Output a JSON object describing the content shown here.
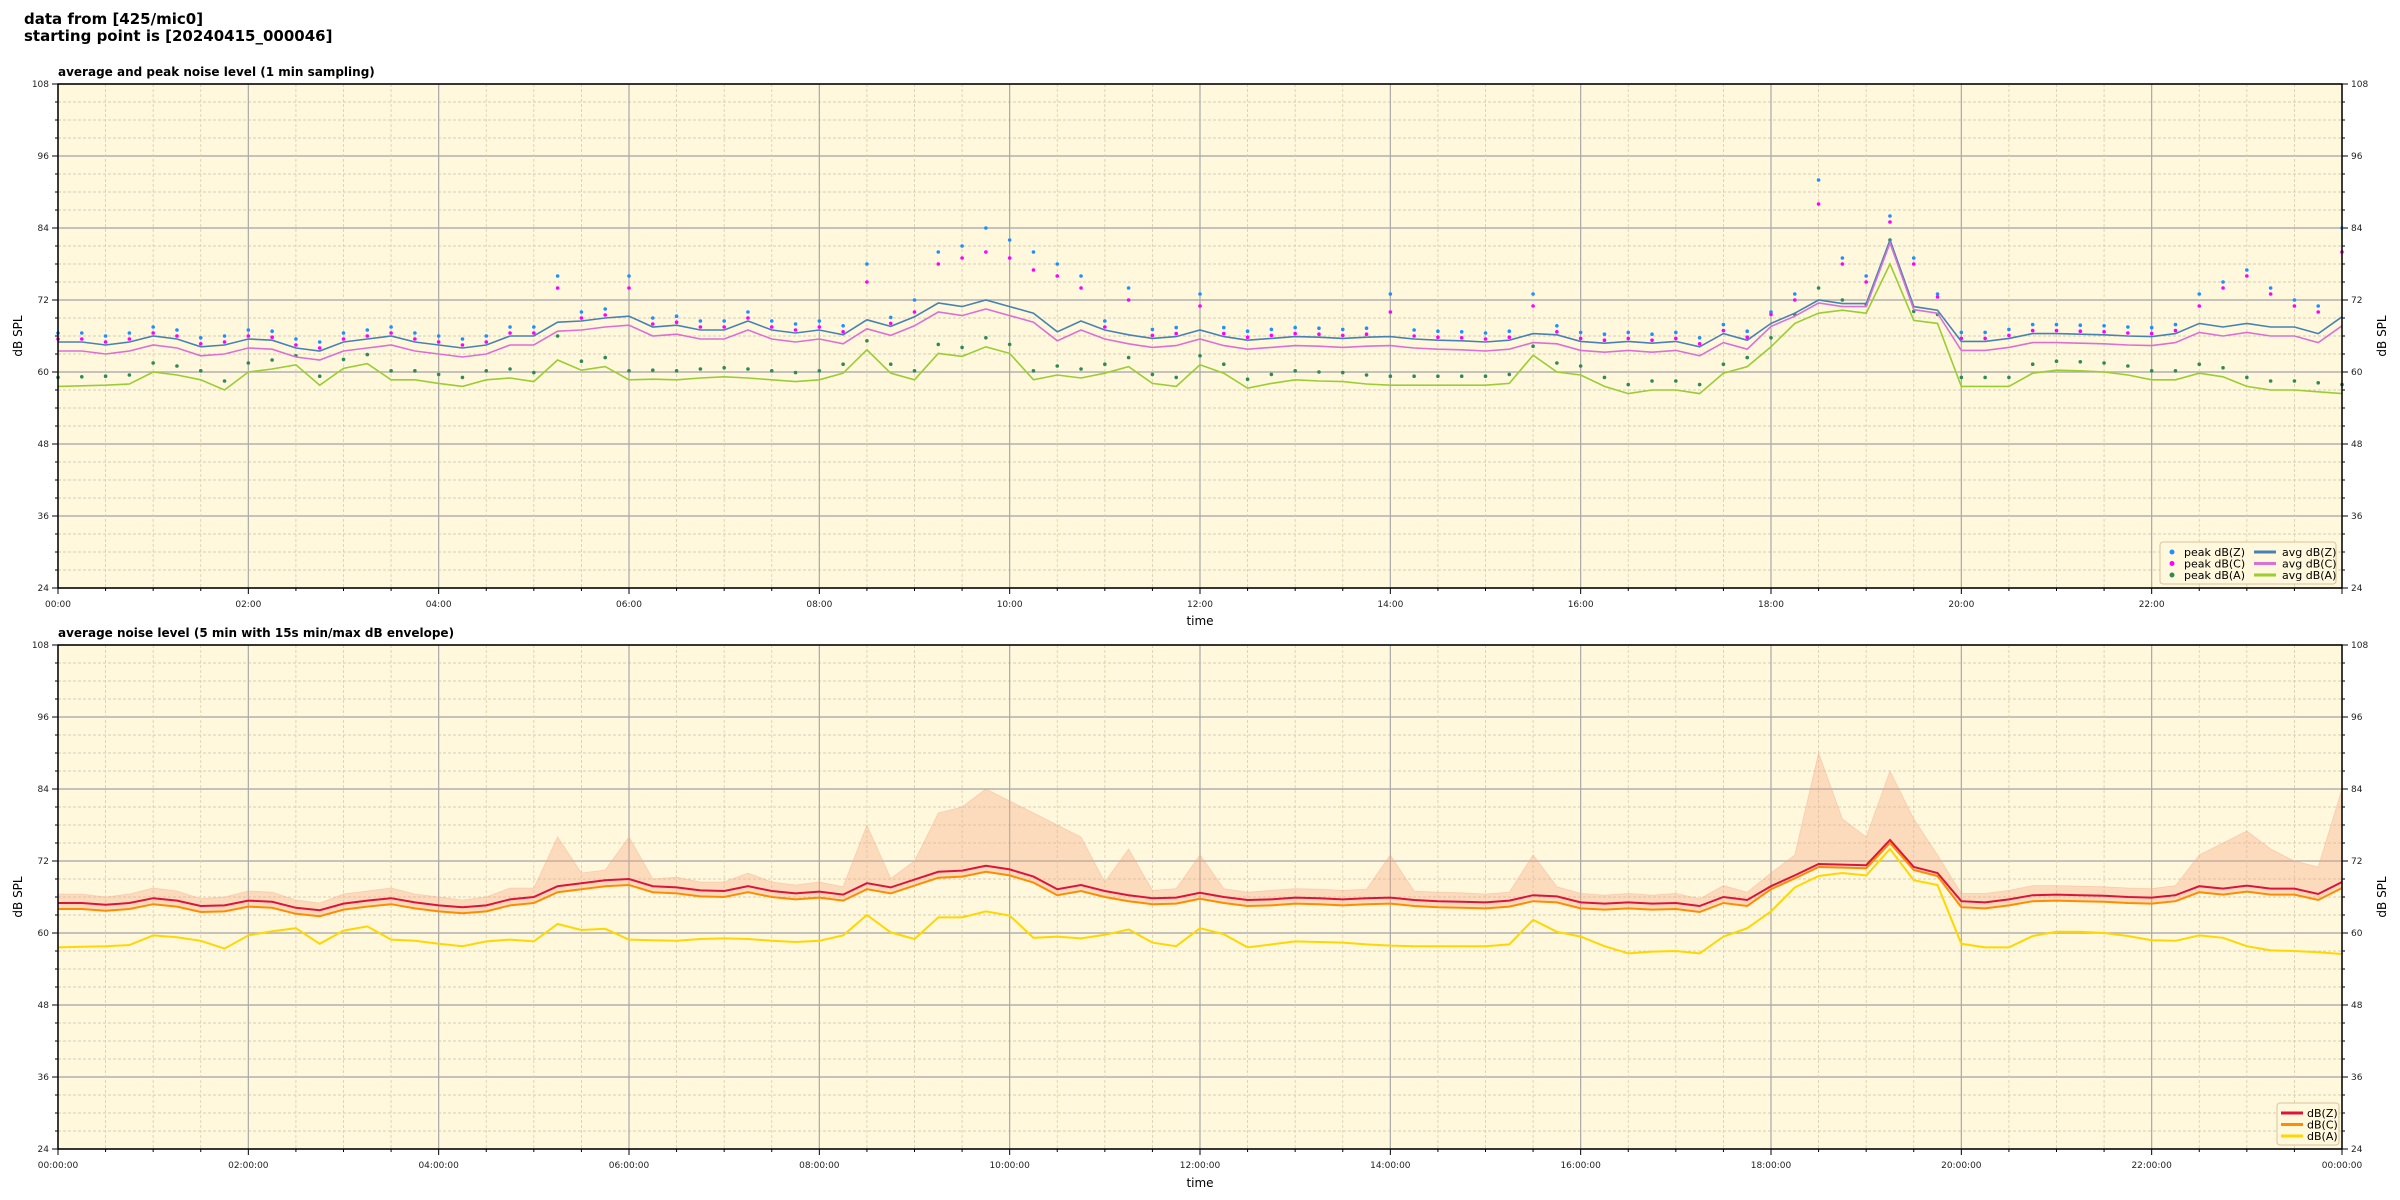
{
  "header": {
    "line1": "data from [425/mic0]",
    "line2": "starting point is [20240415_000046]"
  },
  "background_color": "#fff8dc",
  "chart_data": [
    {
      "type": "line+scatter",
      "title": "average and peak noise level (1 min sampling)",
      "xlabel": "time",
      "ylabel": "dB SPL",
      "ylim": [
        24,
        108
      ],
      "yticks": [
        24,
        36,
        48,
        60,
        72,
        84,
        96,
        108
      ],
      "xlim_hours": [
        0,
        24
      ],
      "xtick_labels": [
        "00:00",
        "02:00",
        "04:00",
        "06:00",
        "08:00",
        "10:00",
        "12:00",
        "14:00",
        "16:00",
        "18:00",
        "20:00",
        "22:00"
      ],
      "grid": true,
      "legend_placement": "lower-right",
      "x_step_hours": 0.25,
      "series": [
        {
          "name": "peak dB(Z)",
          "kind": "scatter",
          "color": "#1e90ff",
          "values": [
            66.5,
            66.5,
            66,
            66.5,
            67.5,
            67,
            65.7,
            66,
            67,
            66.8,
            65.5,
            65,
            66.5,
            67,
            67.5,
            66.5,
            66,
            65.5,
            66,
            67.5,
            67.5,
            76,
            70,
            70.5,
            76,
            69,
            69.3,
            68.5,
            68.5,
            70,
            68.5,
            68,
            68.5,
            67.7,
            78,
            69.1,
            72,
            80,
            81,
            84,
            82,
            80,
            78,
            76,
            68.5,
            74,
            67.1,
            67.4,
            73,
            67.4,
            66.8,
            67.1,
            67.4,
            67.3,
            67.1,
            67.3,
            73,
            67,
            66.8,
            66.7,
            66.5,
            66.8,
            73,
            67.7,
            66.6,
            66.3,
            66.6,
            66.3,
            66.6,
            65.7,
            67.9,
            66.8,
            70,
            73,
            92,
            79,
            76,
            86,
            79,
            73,
            66.6,
            66.6,
            67.1,
            67.9,
            67.9,
            67.8,
            67.7,
            67.5,
            67.4,
            67.9,
            73,
            75,
            77,
            74,
            72,
            71,
            84
          ]
        },
        {
          "name": "peak dB(C)",
          "kind": "scatter",
          "color": "#ff00ff",
          "values": [
            65.5,
            65.5,
            65,
            65.5,
            66.5,
            66,
            64.7,
            65,
            66,
            65.8,
            64.5,
            64,
            65.5,
            66,
            66.5,
            65.5,
            65,
            64.5,
            65,
            66.5,
            66.5,
            74,
            69,
            69.5,
            74,
            68,
            68.3,
            67.5,
            67.5,
            69,
            67.5,
            67,
            67.5,
            66.7,
            75,
            68.1,
            70,
            78,
            79,
            80,
            79,
            77,
            76,
            74,
            67.5,
            72,
            66.1,
            66.4,
            71,
            66.4,
            65.8,
            66.1,
            66.4,
            66.3,
            66.1,
            66.3,
            70,
            66,
            65.8,
            65.7,
            65.5,
            65.8,
            71,
            66.7,
            65.6,
            65.3,
            65.6,
            65.3,
            65.6,
            64.7,
            66.9,
            65.8,
            69.6,
            72,
            88,
            78,
            75,
            85,
            78,
            72.5,
            65.6,
            65.6,
            66.1,
            66.9,
            66.9,
            66.8,
            66.7,
            66.5,
            66.4,
            66.9,
            71,
            74,
            76,
            73,
            71,
            70,
            80
          ]
        },
        {
          "name": "peak dB(A)",
          "kind": "scatter",
          "color": "#2e8b57",
          "values": [
            59.1,
            59.2,
            59.3,
            59.5,
            61.5,
            61,
            60.2,
            58.5,
            61.5,
            62,
            62.7,
            59.3,
            62.1,
            62.9,
            60.2,
            60.2,
            59.6,
            59.1,
            60.2,
            60.5,
            59.9,
            66,
            61.8,
            62.4,
            60.2,
            60.3,
            60.2,
            60.5,
            60.7,
            60.5,
            60.2,
            59.9,
            60.2,
            61.3,
            65.2,
            61.3,
            60.2,
            64.6,
            64.1,
            65.7,
            64.6,
            60.2,
            61,
            60.5,
            61.3,
            62.4,
            59.6,
            59.1,
            62.7,
            61.3,
            58.8,
            59.6,
            60.2,
            60,
            59.9,
            59.5,
            59.3,
            59.3,
            59.3,
            59.3,
            59.3,
            59.6,
            64.3,
            61.5,
            61,
            59.1,
            57.9,
            58.5,
            58.5,
            57.9,
            61.3,
            62.4,
            65.7,
            69.6,
            74,
            72,
            71.3,
            82,
            70.1,
            69.6,
            59.1,
            59.1,
            59.1,
            61.3,
            61.8,
            61.7,
            61.5,
            61,
            60.2,
            60.2,
            61.3,
            60.7,
            59.1,
            58.5,
            58.5,
            58.2,
            57.9
          ]
        },
        {
          "name": "avg dB(Z)",
          "kind": "line",
          "color": "#4682b4",
          "values": [
            65,
            65,
            64.5,
            65,
            66,
            65.5,
            64.2,
            64.5,
            65.5,
            65.3,
            64,
            63.5,
            65,
            65.5,
            66,
            65,
            64.5,
            64,
            64.5,
            66,
            66,
            68.3,
            68.5,
            69,
            69.3,
            67.5,
            67.8,
            67,
            67,
            68.5,
            67,
            66.5,
            67,
            66.2,
            68.7,
            67.6,
            69.2,
            71.5,
            70.9,
            72,
            70.9,
            69.8,
            66.7,
            68.5,
            67,
            66.2,
            65.6,
            65.9,
            67,
            65.9,
            65.3,
            65.6,
            65.9,
            65.8,
            65.6,
            65.8,
            65.9,
            65.5,
            65.3,
            65.2,
            65,
            65.3,
            66.4,
            66.2,
            65.1,
            64.8,
            65.1,
            64.8,
            65.1,
            64.2,
            66.4,
            65.3,
            68.1,
            69.8,
            72,
            71.4,
            71.4,
            82,
            70.9,
            70.3,
            65.1,
            65.1,
            65.6,
            66.4,
            66.4,
            66.3,
            66.2,
            66,
            65.9,
            66.4,
            68.1,
            67.5,
            68.1,
            67.5,
            67.5,
            66.4,
            69.2
          ]
        },
        {
          "name": "avg dB(C)",
          "kind": "line",
          "color": "#da70d6",
          "values": [
            63.5,
            63.5,
            63,
            63.5,
            64.5,
            64,
            62.7,
            63,
            64,
            63.8,
            62.5,
            62,
            63.5,
            64,
            64.5,
            63.5,
            63,
            62.5,
            63,
            64.5,
            64.5,
            66.8,
            67,
            67.5,
            67.8,
            66,
            66.3,
            65.5,
            65.5,
            67,
            65.5,
            65,
            65.5,
            64.7,
            67.2,
            66.1,
            67.7,
            70,
            69.4,
            70.5,
            69.4,
            68.3,
            65.2,
            67,
            65.5,
            64.7,
            64.1,
            64.4,
            65.5,
            64.4,
            63.8,
            64.1,
            64.4,
            64.3,
            64.1,
            64.3,
            64.4,
            64,
            63.8,
            63.7,
            63.5,
            63.8,
            64.9,
            64.7,
            63.6,
            63.3,
            63.6,
            63.3,
            63.6,
            62.7,
            64.9,
            63.8,
            67.6,
            69.3,
            71.5,
            70.9,
            70.9,
            81.5,
            70.4,
            69.8,
            63.6,
            63.6,
            64.1,
            64.9,
            64.9,
            64.8,
            64.7,
            64.5,
            64.4,
            64.9,
            66.6,
            66,
            66.6,
            66,
            66,
            64.9,
            67.7
          ]
        },
        {
          "name": "avg dB(A)",
          "kind": "line",
          "color": "#9acd32",
          "values": [
            57.6,
            57.7,
            57.8,
            58,
            60,
            59.5,
            58.7,
            57,
            60,
            60.5,
            61.2,
            57.8,
            60.6,
            61.4,
            58.7,
            58.7,
            58.1,
            57.6,
            58.7,
            59,
            58.4,
            62,
            60.3,
            60.9,
            58.7,
            58.8,
            58.7,
            59,
            59.2,
            59,
            58.7,
            58.4,
            58.7,
            59.8,
            63.7,
            59.8,
            58.7,
            63.1,
            62.6,
            64.2,
            63.1,
            58.7,
            59.5,
            59,
            59.8,
            60.9,
            58.1,
            57.6,
            61.2,
            59.8,
            57.3,
            58.1,
            58.7,
            58.5,
            58.4,
            58,
            57.8,
            57.8,
            57.8,
            57.8,
            57.8,
            58.1,
            62.8,
            60,
            59.5,
            57.6,
            56.4,
            57,
            57,
            56.4,
            59.8,
            60.9,
            64.2,
            68.1,
            69.8,
            70.3,
            69.8,
            78,
            68.6,
            68.1,
            57.6,
            57.6,
            57.6,
            59.8,
            60.3,
            60.2,
            60,
            59.5,
            58.7,
            58.7,
            59.8,
            59.2,
            57.6,
            57,
            57,
            56.7,
            56.4
          ]
        }
      ]
    },
    {
      "type": "line+area",
      "title": "average noise level (5 min with 15s min/max dB envelope)",
      "xlabel": "time",
      "ylabel": "dB SPL",
      "ylim": [
        24,
        108
      ],
      "yticks": [
        24,
        36,
        48,
        60,
        72,
        84,
        96,
        108
      ],
      "xlim_hours": [
        0,
        24
      ],
      "xtick_labels": [
        "00:00:00",
        "02:00:00",
        "04:00:00",
        "06:00:00",
        "08:00:00",
        "10:00:00",
        "12:00:00",
        "14:00:00",
        "16:00:00",
        "18:00:00",
        "20:00:00",
        "22:00:00",
        "00:00:00"
      ],
      "grid": true,
      "legend_placement": "lower-right",
      "x_step_hours": 0.25,
      "envelope": {
        "color": "#f4a582",
        "max_values": [
          66.5,
          66.5,
          66,
          66.5,
          67.5,
          67,
          65.7,
          66,
          67,
          66.8,
          65.5,
          65,
          66.5,
          67,
          67.5,
          66.5,
          66,
          65.5,
          66,
          67.5,
          67.5,
          76,
          70,
          70.5,
          76,
          69,
          69.3,
          68.5,
          68.5,
          70,
          68.5,
          68,
          68.5,
          67.7,
          78,
          69.1,
          72,
          80,
          81,
          84,
          82,
          80,
          78,
          76,
          68.5,
          74,
          67.1,
          67.4,
          73,
          67.4,
          66.8,
          67.1,
          67.4,
          67.3,
          67.1,
          67.3,
          73,
          67,
          66.8,
          66.7,
          66.5,
          66.8,
          73,
          67.7,
          66.6,
          66.3,
          66.6,
          66.3,
          66.6,
          65.7,
          67.9,
          66.8,
          70,
          73,
          90,
          79,
          76,
          87,
          79,
          73,
          66.6,
          66.6,
          67.1,
          67.9,
          67.9,
          67.8,
          67.7,
          67.5,
          67.4,
          67.9,
          73,
          75,
          77,
          74,
          72,
          71,
          84
        ]
      },
      "series": [
        {
          "name": "dB(Z)",
          "color": "#dc143c",
          "values": [
            65,
            65,
            64.7,
            65,
            65.8,
            65.4,
            64.5,
            64.6,
            65.4,
            65.2,
            64.2,
            63.8,
            64.9,
            65.4,
            65.8,
            65.1,
            64.6,
            64.3,
            64.6,
            65.6,
            66,
            67.8,
            68.3,
            68.8,
            69,
            67.8,
            67.6,
            67.1,
            67,
            67.8,
            67,
            66.6,
            66.9,
            66.4,
            68.3,
            67.6,
            68.9,
            70.2,
            70.4,
            71.2,
            70.6,
            69.4,
            67.3,
            68,
            67,
            66.3,
            65.8,
            65.9,
            66.7,
            66,
            65.5,
            65.6,
            65.9,
            65.8,
            65.6,
            65.8,
            65.9,
            65.5,
            65.3,
            65.2,
            65.1,
            65.4,
            66.3,
            66.1,
            65.1,
            64.9,
            65.1,
            64.9,
            65,
            64.5,
            66,
            65.5,
            67.8,
            69.6,
            71.5,
            71.4,
            71.3,
            75.5,
            71,
            70,
            65.3,
            65.1,
            65.6,
            66.3,
            66.4,
            66.3,
            66.2,
            66,
            65.9,
            66.3,
            67.8,
            67.4,
            67.9,
            67.4,
            67.4,
            66.5,
            68.5
          ]
        },
        {
          "name": "dB(C)",
          "color": "#ff8c00",
          "values": [
            64,
            64,
            63.7,
            64,
            64.8,
            64.4,
            63.5,
            63.6,
            64.4,
            64.2,
            63.2,
            62.8,
            63.9,
            64.4,
            64.8,
            64.1,
            63.6,
            63.3,
            63.6,
            64.6,
            65,
            66.8,
            67.3,
            67.8,
            68,
            66.8,
            66.6,
            66.1,
            66,
            66.8,
            66,
            65.6,
            65.9,
            65.4,
            67.3,
            66.6,
            67.9,
            69.2,
            69.4,
            70.2,
            69.6,
            68.4,
            66.3,
            67,
            66,
            65.3,
            64.8,
            64.9,
            65.7,
            65,
            64.5,
            64.6,
            64.9,
            64.8,
            64.6,
            64.8,
            64.9,
            64.5,
            64.3,
            64.2,
            64.1,
            64.4,
            65.3,
            65.1,
            64.1,
            63.9,
            64.1,
            63.9,
            64,
            63.5,
            65,
            64.5,
            67.3,
            69.1,
            71,
            70.9,
            70.8,
            75,
            70.5,
            69.5,
            64.3,
            64.1,
            64.6,
            65.3,
            65.4,
            65.3,
            65.2,
            65,
            64.9,
            65.3,
            66.8,
            66.4,
            66.9,
            66.4,
            66.4,
            65.5,
            67.5
          ]
        },
        {
          "name": "dB(A)",
          "color": "#ffd700",
          "values": [
            57.6,
            57.7,
            57.8,
            58,
            59.6,
            59.3,
            58.7,
            57.4,
            59.6,
            60.3,
            60.8,
            58.2,
            60.4,
            61.1,
            58.9,
            58.7,
            58.2,
            57.8,
            58.6,
            58.9,
            58.6,
            61.5,
            60.5,
            60.7,
            58.9,
            58.8,
            58.7,
            59,
            59.1,
            59,
            58.7,
            58.5,
            58.7,
            59.6,
            63,
            60.1,
            59,
            62.6,
            62.6,
            63.6,
            62.9,
            59.2,
            59.4,
            59.1,
            59.7,
            60.6,
            58.4,
            57.8,
            60.8,
            59.8,
            57.6,
            58.1,
            58.6,
            58.5,
            58.4,
            58.1,
            57.9,
            57.8,
            57.8,
            57.8,
            57.8,
            58.1,
            62.2,
            60.2,
            59.4,
            57.8,
            56.6,
            56.9,
            57,
            56.6,
            59.4,
            60.8,
            63.6,
            67.6,
            69.5,
            70,
            69.6,
            74,
            68.8,
            68,
            58.2,
            57.6,
            57.6,
            59.5,
            60.2,
            60.2,
            60,
            59.5,
            58.8,
            58.7,
            59.6,
            59.2,
            57.8,
            57.1,
            57,
            56.8,
            56.5
          ]
        }
      ]
    }
  ]
}
